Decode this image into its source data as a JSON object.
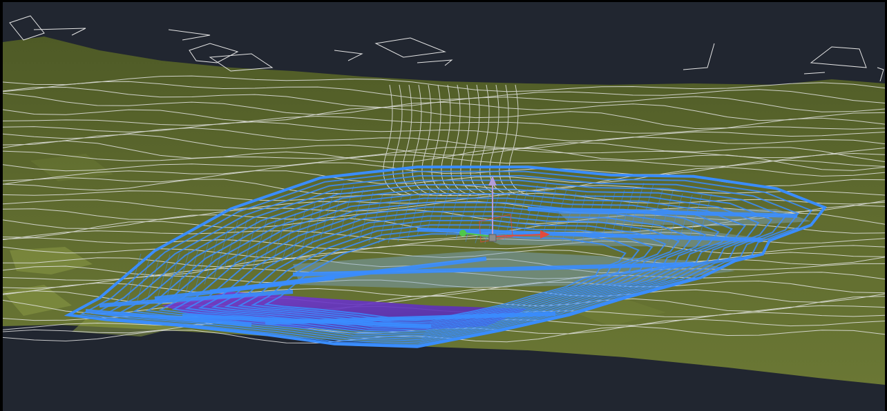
{
  "viewport": {
    "background": "#212630",
    "frame_color": "#000000"
  },
  "scene": {
    "terrain_color": "#5f6b2f",
    "terrain_highlight_color": "#8a9a45",
    "contour_color": "#e6e6e6",
    "excavation_wire_color": "#3a8dff",
    "excavation_fill_color": "#6a3acb",
    "water_color": "#7fa6c9"
  },
  "ucs_gizmo": {
    "x_axis_color": "#e24a3b",
    "y_axis_color": "#4fc84a",
    "z_axis_color": "#b39ddb",
    "origin_color": "#8c8c8c",
    "icon": "ucs-axis-icon"
  }
}
